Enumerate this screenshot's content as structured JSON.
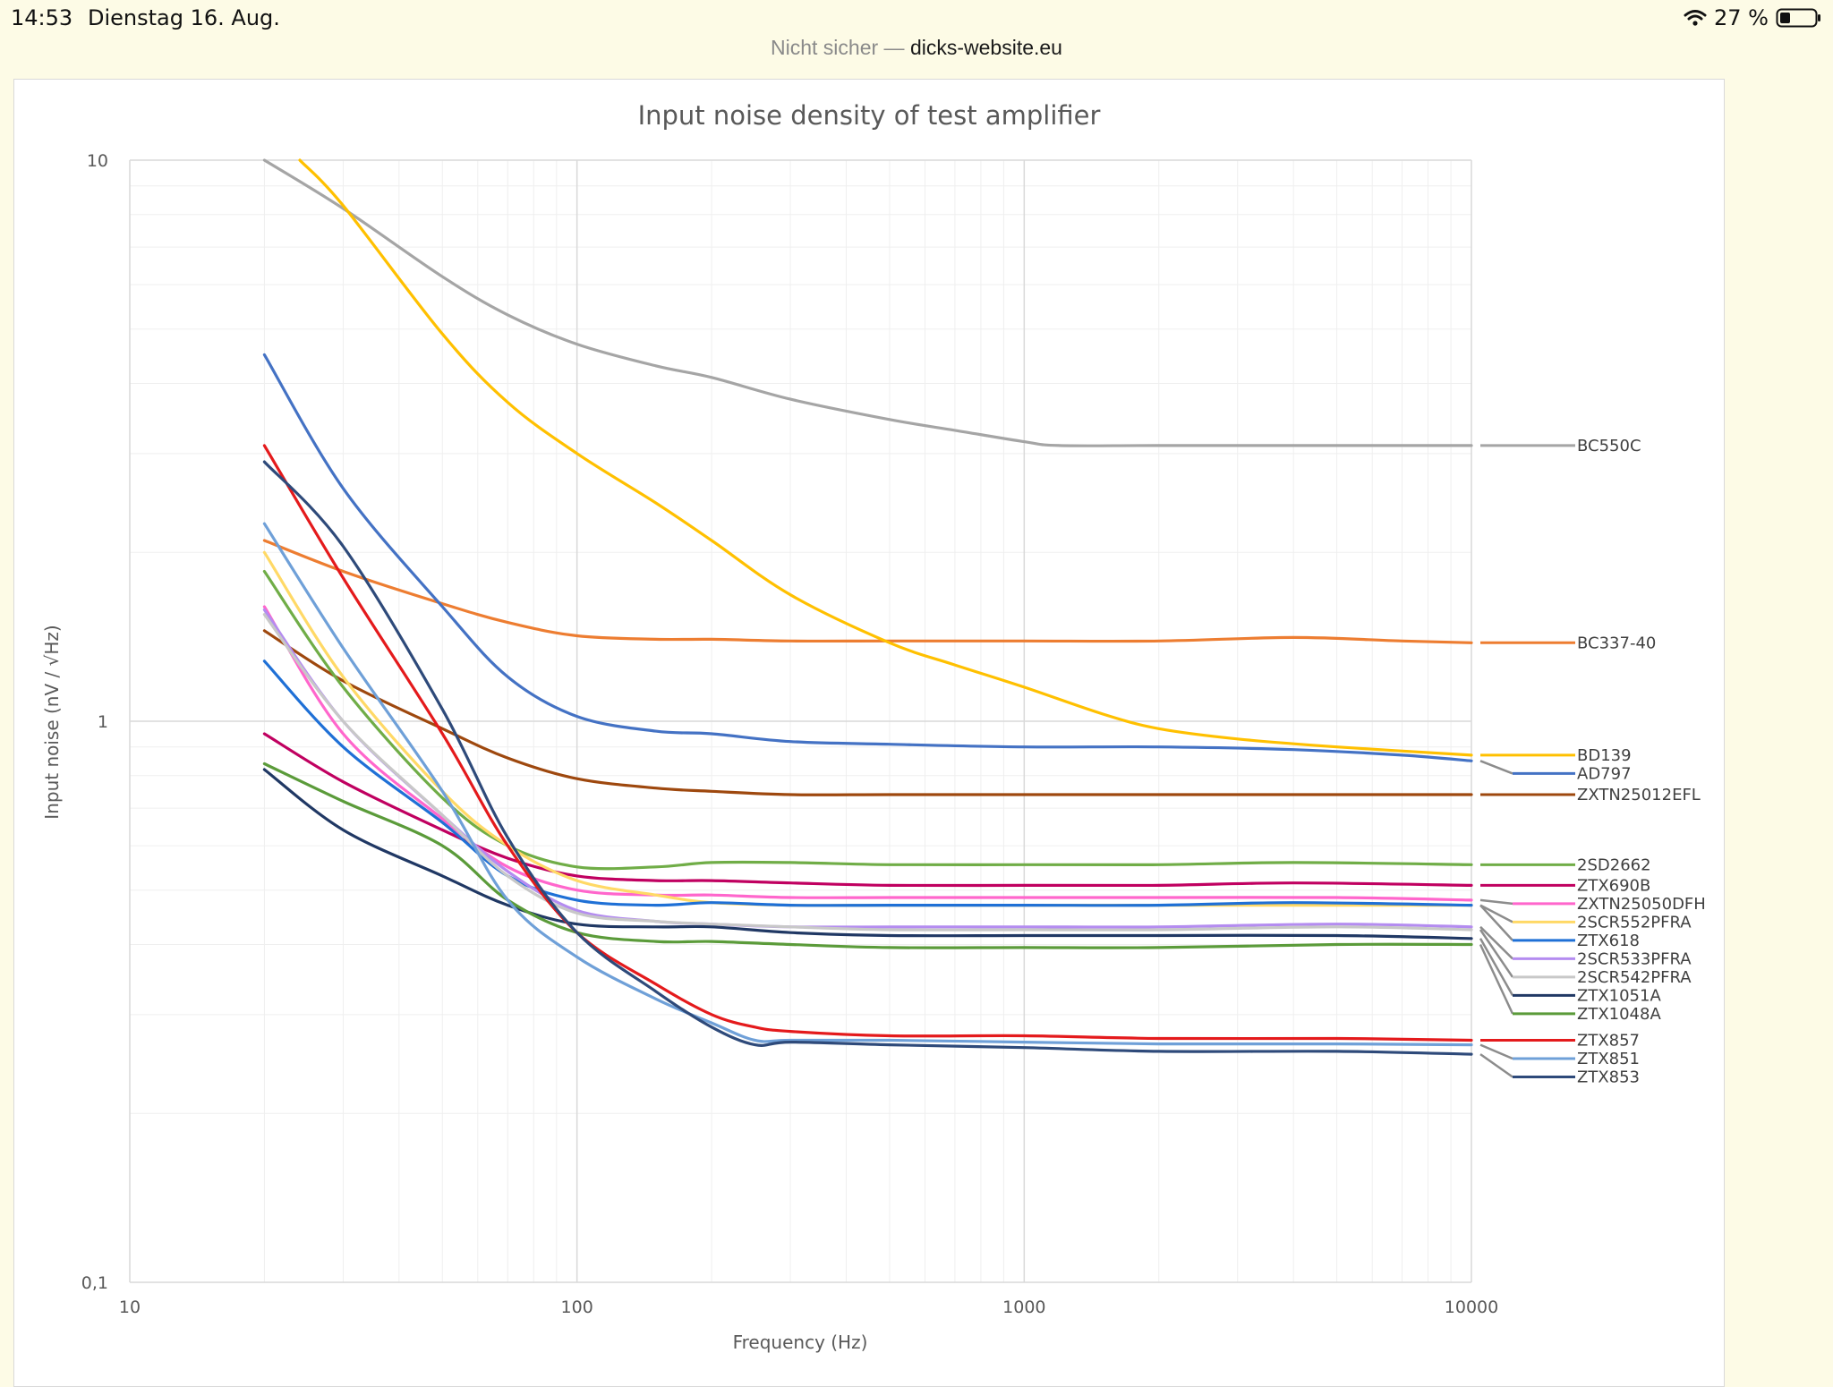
{
  "status_bar": {
    "time": "14:53",
    "date": "Dienstag 16. Aug.",
    "battery": "27 %"
  },
  "url_bar": {
    "prefix": "Nicht sicher —",
    "host": "dicks-website.eu"
  },
  "colors": {
    "page_background": "#fdfbe6",
    "grid": "#d9d9d9",
    "text": "#595959"
  },
  "chart_data": {
    "type": "line",
    "title": "Input noise density of test amplifier",
    "xlabel": "Frequency (Hz)",
    "ylabel": "Input noise (nV / √Hz)",
    "x_scale": "log",
    "y_scale": "log",
    "xlim": [
      10,
      10000
    ],
    "ylim": [
      0.1,
      10
    ],
    "x_ticks": [
      {
        "v": 10,
        "label": "10"
      },
      {
        "v": 100,
        "label": "100"
      },
      {
        "v": 1000,
        "label": "1000"
      },
      {
        "v": 10000,
        "label": "10000"
      }
    ],
    "y_ticks": [
      {
        "v": 0.1,
        "label": "0,1"
      },
      {
        "v": 1,
        "label": "1"
      },
      {
        "v": 10,
        "label": "10"
      }
    ],
    "grid": true,
    "legend": "right (labels at line ends)",
    "series": [
      {
        "name": "BC550C",
        "color": "#a5a5a5",
        "points": [
          [
            20,
            10.0
          ],
          [
            30,
            8.2
          ],
          [
            50,
            6.2
          ],
          [
            70,
            5.3
          ],
          [
            100,
            4.7
          ],
          [
            150,
            4.3
          ],
          [
            200,
            4.1
          ],
          [
            300,
            3.75
          ],
          [
            500,
            3.45
          ],
          [
            700,
            3.3
          ],
          [
            1000,
            3.15
          ],
          [
            1200,
            3.1
          ],
          [
            2000,
            3.1
          ],
          [
            5000,
            3.1
          ],
          [
            10000,
            3.1
          ]
        ]
      },
      {
        "name": "BC337-40",
        "color": "#ed7d31",
        "points": [
          [
            20,
            2.1
          ],
          [
            30,
            1.85
          ],
          [
            50,
            1.62
          ],
          [
            70,
            1.5
          ],
          [
            100,
            1.42
          ],
          [
            150,
            1.4
          ],
          [
            200,
            1.4
          ],
          [
            300,
            1.39
          ],
          [
            500,
            1.39
          ],
          [
            1000,
            1.39
          ],
          [
            2000,
            1.39
          ],
          [
            4000,
            1.41
          ],
          [
            7000,
            1.39
          ],
          [
            10000,
            1.38
          ]
        ]
      },
      {
        "name": "BD139",
        "color": "#ffc000",
        "points": [
          [
            24,
            10.0
          ],
          [
            30,
            8.3
          ],
          [
            50,
            4.9
          ],
          [
            70,
            3.7
          ],
          [
            100,
            3.0
          ],
          [
            150,
            2.45
          ],
          [
            200,
            2.1
          ],
          [
            300,
            1.68
          ],
          [
            500,
            1.38
          ],
          [
            700,
            1.26
          ],
          [
            1000,
            1.15
          ],
          [
            1500,
            1.03
          ],
          [
            2000,
            0.97
          ],
          [
            3000,
            0.93
          ],
          [
            5000,
            0.9
          ],
          [
            10000,
            0.87
          ]
        ]
      },
      {
        "name": "AD797",
        "color": "#4472c4",
        "points": [
          [
            20,
            4.5
          ],
          [
            30,
            2.6
          ],
          [
            50,
            1.6
          ],
          [
            70,
            1.2
          ],
          [
            100,
            1.02
          ],
          [
            150,
            0.96
          ],
          [
            200,
            0.95
          ],
          [
            300,
            0.92
          ],
          [
            500,
            0.91
          ],
          [
            1000,
            0.9
          ],
          [
            2000,
            0.9
          ],
          [
            4000,
            0.89
          ],
          [
            7000,
            0.87
          ],
          [
            10000,
            0.85
          ]
        ]
      },
      {
        "name": "ZXTN25012EFL",
        "color": "#9e480e",
        "points": [
          [
            20,
            1.45
          ],
          [
            30,
            1.18
          ],
          [
            50,
            0.97
          ],
          [
            70,
            0.86
          ],
          [
            100,
            0.79
          ],
          [
            150,
            0.76
          ],
          [
            200,
            0.75
          ],
          [
            300,
            0.74
          ],
          [
            500,
            0.74
          ],
          [
            1000,
            0.74
          ],
          [
            2000,
            0.74
          ],
          [
            5000,
            0.74
          ],
          [
            10000,
            0.74
          ]
        ]
      },
      {
        "name": "2SD2662",
        "color": "#70ad47",
        "points": [
          [
            20,
            1.85
          ],
          [
            30,
            1.15
          ],
          [
            50,
            0.73
          ],
          [
            70,
            0.6
          ],
          [
            100,
            0.55
          ],
          [
            150,
            0.55
          ],
          [
            200,
            0.56
          ],
          [
            300,
            0.56
          ],
          [
            500,
            0.555
          ],
          [
            1000,
            0.555
          ],
          [
            2000,
            0.555
          ],
          [
            4000,
            0.56
          ],
          [
            10000,
            0.555
          ]
        ]
      },
      {
        "name": "ZTX690B",
        "color": "#c00060",
        "points": [
          [
            20,
            0.95
          ],
          [
            30,
            0.78
          ],
          [
            50,
            0.64
          ],
          [
            70,
            0.57
          ],
          [
            100,
            0.53
          ],
          [
            150,
            0.52
          ],
          [
            200,
            0.52
          ],
          [
            300,
            0.515
          ],
          [
            500,
            0.51
          ],
          [
            1000,
            0.51
          ],
          [
            2000,
            0.51
          ],
          [
            4000,
            0.515
          ],
          [
            10000,
            0.51
          ]
        ]
      },
      {
        "name": "ZXTN25050DFH",
        "color": "#ff66cc",
        "points": [
          [
            20,
            1.6
          ],
          [
            30,
            0.95
          ],
          [
            50,
            0.67
          ],
          [
            70,
            0.55
          ],
          [
            100,
            0.5
          ],
          [
            150,
            0.49
          ],
          [
            200,
            0.49
          ],
          [
            300,
            0.485
          ],
          [
            500,
            0.485
          ],
          [
            1000,
            0.485
          ],
          [
            2000,
            0.485
          ],
          [
            5000,
            0.485
          ],
          [
            10000,
            0.48
          ]
        ]
      },
      {
        "name": "2SCR552PFRA",
        "color": "#ffd966",
        "points": [
          [
            20,
            2.0
          ],
          [
            30,
            1.2
          ],
          [
            50,
            0.75
          ],
          [
            70,
            0.6
          ],
          [
            100,
            0.52
          ],
          [
            150,
            0.49
          ],
          [
            200,
            0.475
          ],
          [
            300,
            0.47
          ],
          [
            500,
            0.47
          ],
          [
            1000,
            0.47
          ],
          [
            2000,
            0.47
          ],
          [
            5000,
            0.47
          ],
          [
            10000,
            0.47
          ]
        ]
      },
      {
        "name": "ZTX618",
        "color": "#1f70d6",
        "points": [
          [
            20,
            1.28
          ],
          [
            30,
            0.9
          ],
          [
            50,
            0.66
          ],
          [
            70,
            0.53
          ],
          [
            100,
            0.48
          ],
          [
            150,
            0.47
          ],
          [
            200,
            0.475
          ],
          [
            300,
            0.47
          ],
          [
            500,
            0.47
          ],
          [
            1000,
            0.47
          ],
          [
            2000,
            0.47
          ],
          [
            4000,
            0.475
          ],
          [
            10000,
            0.47
          ]
        ]
      },
      {
        "name": "2SCR533PFRA",
        "color": "#b48cf0",
        "points": [
          [
            20,
            1.58
          ],
          [
            30,
            1.0
          ],
          [
            50,
            0.68
          ],
          [
            70,
            0.54
          ],
          [
            100,
            0.46
          ],
          [
            150,
            0.44
          ],
          [
            200,
            0.435
          ],
          [
            300,
            0.43
          ],
          [
            500,
            0.43
          ],
          [
            1000,
            0.43
          ],
          [
            2000,
            0.43
          ],
          [
            5000,
            0.435
          ],
          [
            10000,
            0.43
          ]
        ]
      },
      {
        "name": "2SCR542PFRA",
        "color": "#c8c8c8",
        "points": [
          [
            20,
            1.55
          ],
          [
            30,
            1.0
          ],
          [
            50,
            0.68
          ],
          [
            70,
            0.53
          ],
          [
            100,
            0.455
          ],
          [
            150,
            0.44
          ],
          [
            200,
            0.435
          ],
          [
            300,
            0.43
          ],
          [
            500,
            0.425
          ],
          [
            1000,
            0.425
          ],
          [
            2000,
            0.425
          ],
          [
            5000,
            0.43
          ],
          [
            10000,
            0.425
          ]
        ]
      },
      {
        "name": "ZTX1051A",
        "color": "#203864",
        "points": [
          [
            20,
            0.82
          ],
          [
            30,
            0.64
          ],
          [
            50,
            0.53
          ],
          [
            70,
            0.47
          ],
          [
            100,
            0.435
          ],
          [
            150,
            0.43
          ],
          [
            200,
            0.43
          ],
          [
            300,
            0.42
          ],
          [
            500,
            0.415
          ],
          [
            1000,
            0.415
          ],
          [
            2000,
            0.415
          ],
          [
            5000,
            0.415
          ],
          [
            10000,
            0.41
          ]
        ]
      },
      {
        "name": "ZTX1048A",
        "color": "#5b9b3a",
        "points": [
          [
            20,
            0.84
          ],
          [
            30,
            0.72
          ],
          [
            50,
            0.6
          ],
          [
            70,
            0.48
          ],
          [
            100,
            0.42
          ],
          [
            150,
            0.405
          ],
          [
            200,
            0.405
          ],
          [
            300,
            0.4
          ],
          [
            500,
            0.395
          ],
          [
            1000,
            0.395
          ],
          [
            2000,
            0.395
          ],
          [
            5000,
            0.4
          ],
          [
            10000,
            0.4
          ]
        ]
      },
      {
        "name": "ZTX857",
        "color": "#e41a1c",
        "points": [
          [
            20,
            3.1
          ],
          [
            30,
            1.8
          ],
          [
            50,
            0.95
          ],
          [
            70,
            0.6
          ],
          [
            100,
            0.42
          ],
          [
            150,
            0.34
          ],
          [
            200,
            0.3
          ],
          [
            250,
            0.285
          ],
          [
            300,
            0.28
          ],
          [
            500,
            0.275
          ],
          [
            1000,
            0.275
          ],
          [
            2000,
            0.272
          ],
          [
            5000,
            0.272
          ],
          [
            10000,
            0.27
          ]
        ]
      },
      {
        "name": "ZTX851",
        "color": "#6fa0d8",
        "points": [
          [
            20,
            2.25
          ],
          [
            30,
            1.35
          ],
          [
            50,
            0.75
          ],
          [
            70,
            0.48
          ],
          [
            100,
            0.38
          ],
          [
            150,
            0.32
          ],
          [
            200,
            0.29
          ],
          [
            250,
            0.27
          ],
          [
            300,
            0.27
          ],
          [
            500,
            0.27
          ],
          [
            1000,
            0.268
          ],
          [
            2000,
            0.266
          ],
          [
            5000,
            0.266
          ],
          [
            10000,
            0.265
          ]
        ]
      },
      {
        "name": "ZTX853",
        "color": "#2e4a7a",
        "points": [
          [
            20,
            2.9
          ],
          [
            30,
            2.05
          ],
          [
            50,
            1.05
          ],
          [
            70,
            0.62
          ],
          [
            100,
            0.42
          ],
          [
            150,
            0.33
          ],
          [
            200,
            0.285
          ],
          [
            250,
            0.265
          ],
          [
            300,
            0.268
          ],
          [
            500,
            0.265
          ],
          [
            1000,
            0.262
          ],
          [
            2000,
            0.258
          ],
          [
            5000,
            0.258
          ],
          [
            10000,
            0.255
          ]
        ]
      }
    ]
  }
}
